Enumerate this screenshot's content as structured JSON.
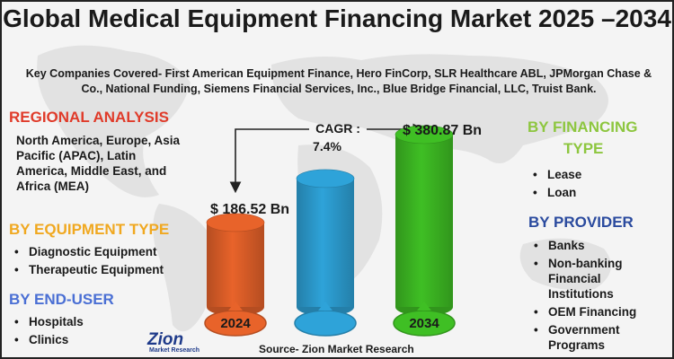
{
  "title": "Global Medical Equipment Financing Market 2025 –2034",
  "companies": "Key Companies Covered- First American Equipment Finance, Hero FinCorp, SLR Healthcare ABL, JPMorgan Chase & Co., National Funding, Siemens Financial Services, Inc., Blue Bridge Financial, LLC, Truist Bank.",
  "regional": {
    "heading": "REGIONAL ANALYSIS",
    "text": "North America, Europe, Asia Pacific (APAC), Latin America, Middle East, and Africa (MEA)",
    "color": "#e03b2a"
  },
  "equipment_type": {
    "heading": "BY EQUIPMENT TYPE",
    "items": [
      "Diagnostic Equipment",
      "Therapeutic Equipment"
    ],
    "color": "#f0a820"
  },
  "end_user": {
    "heading": "BY END-USER",
    "items": [
      "Hospitals",
      "Clinics"
    ],
    "color": "#4a6fd4"
  },
  "financing_type": {
    "heading_line1": "BY FINANCING",
    "heading_line2": "TYPE",
    "items": [
      "Lease",
      "Loan"
    ],
    "color": "#8dc63f"
  },
  "provider": {
    "heading": "BY PROVIDER",
    "items": [
      "Banks",
      "Non-banking Financial Institutions",
      "OEM Financing",
      "Government Programs"
    ],
    "color": "#2a4a9e"
  },
  "cagr": {
    "label": "CAGR :",
    "value": "7.4%"
  },
  "chart_data": {
    "type": "bar",
    "categories": [
      "2024",
      "",
      "2034"
    ],
    "values": [
      186.52,
      null,
      380.87
    ],
    "value_labels": [
      "$ 186.52 Bn",
      "",
      "$ 380.87 Bn"
    ],
    "colors": [
      "#e8632a",
      "#2ea3d9",
      "#3fbf24"
    ],
    "title": "",
    "xlabel": "",
    "ylabel": ""
  },
  "logo": {
    "name": "Zion",
    "sub": "Market Research"
  },
  "source": "Source- Zion Market Research"
}
